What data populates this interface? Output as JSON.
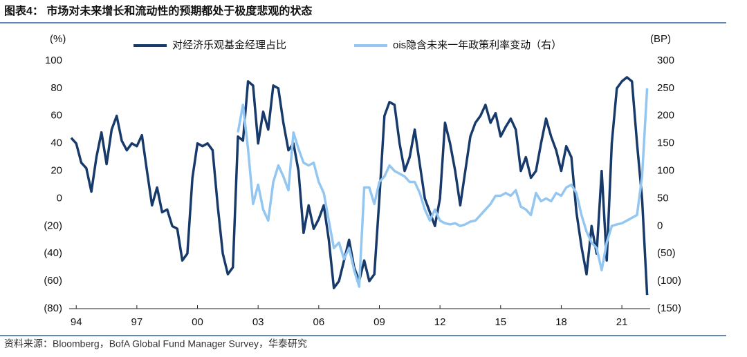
{
  "chart_data": {
    "type": "line",
    "title": "图表4：  市场对未来增长和流动性的预期都处于极度悲观的状态",
    "y_axis_label": "(%)",
    "y2_axis_label": "(BP)",
    "source": "资料来源：Bloomberg，BofA Global Fund Manager Survey，华泰研究",
    "legend": "top",
    "grid": false,
    "xlim": [
      1993.65,
      2022.4
    ],
    "xticks": [
      {
        "value": 1994,
        "label": "94"
      },
      {
        "value": 1997,
        "label": "97"
      },
      {
        "value": 2000,
        "label": "00"
      },
      {
        "value": 2003,
        "label": "03"
      },
      {
        "value": 2006,
        "label": "06"
      },
      {
        "value": 2009,
        "label": "09"
      },
      {
        "value": 2012,
        "label": "12"
      },
      {
        "value": 2015,
        "label": "15"
      },
      {
        "value": 2018,
        "label": "18"
      },
      {
        "value": 2021,
        "label": "21"
      }
    ],
    "ylim": [
      -80,
      100
    ],
    "yticks": [
      {
        "value": -80,
        "label": "(80)"
      },
      {
        "value": -60,
        "label": "(60)"
      },
      {
        "value": -40,
        "label": "(40)"
      },
      {
        "value": -20,
        "label": "(20)"
      },
      0,
      20,
      40,
      60,
      80,
      100
    ],
    "y2lim": [
      -150,
      300
    ],
    "y2ticks": [
      {
        "value": -150,
        "label": "(150)"
      },
      {
        "value": -100,
        "label": "(100)"
      },
      {
        "value": -50,
        "label": "(50)"
      },
      0,
      50,
      100,
      150,
      200,
      250,
      300
    ],
    "x": [
      1993.75,
      1994,
      1994.25,
      1994.5,
      1994.75,
      1995,
      1995.25,
      1995.5,
      1995.75,
      1996,
      1996.25,
      1996.5,
      1996.75,
      1997,
      1997.25,
      1997.5,
      1997.75,
      1998,
      1998.25,
      1998.5,
      1998.75,
      1999,
      1999.25,
      1999.5,
      1999.75,
      2000,
      2000.25,
      2000.5,
      2000.75,
      2001,
      2001.25,
      2001.5,
      2001.75,
      2002,
      2002.25,
      2002.5,
      2002.75,
      2003,
      2003.25,
      2003.5,
      2003.75,
      2004,
      2004.25,
      2004.5,
      2004.75,
      2005,
      2005.25,
      2005.5,
      2005.75,
      2006,
      2006.25,
      2006.5,
      2006.75,
      2007,
      2007.25,
      2007.5,
      2007.75,
      2008,
      2008.25,
      2008.5,
      2008.75,
      2009,
      2009.25,
      2009.5,
      2009.75,
      2010,
      2010.25,
      2010.5,
      2010.75,
      2011,
      2011.25,
      2011.5,
      2011.75,
      2012,
      2012.25,
      2012.5,
      2012.75,
      2013,
      2013.25,
      2013.5,
      2013.75,
      2014,
      2014.25,
      2014.5,
      2014.75,
      2015,
      2015.25,
      2015.5,
      2015.75,
      2016,
      2016.25,
      2016.5,
      2016.75,
      2017,
      2017.25,
      2017.5,
      2017.75,
      2018,
      2018.25,
      2018.5,
      2018.75,
      2019,
      2019.25,
      2019.5,
      2019.75,
      2020,
      2020.25,
      2020.5,
      2020.75,
      2021,
      2021.25,
      2021.5,
      2021.75,
      2022,
      2022.25
    ],
    "series": [
      {
        "name": "对经济乐观基金经理占比",
        "color": "#173a6a",
        "axis": "y",
        "values": [
          44,
          40,
          26,
          22,
          5,
          30,
          48,
          25,
          50,
          60,
          42,
          35,
          40,
          38,
          46,
          20,
          -5,
          8,
          -10,
          -8,
          -20,
          -22,
          -45,
          -40,
          15,
          40,
          38,
          40,
          35,
          -5,
          -40,
          -55,
          -50,
          45,
          42,
          85,
          82,
          40,
          63,
          50,
          82,
          80,
          55,
          35,
          40,
          20,
          -25,
          -5,
          -22,
          -15,
          -5,
          -30,
          -65,
          -60,
          -45,
          -30,
          -50,
          -60,
          -45,
          -60,
          -55,
          0,
          60,
          70,
          68,
          40,
          20,
          30,
          50,
          25,
          0,
          -10,
          -20,
          0,
          55,
          40,
          20,
          -5,
          20,
          45,
          55,
          60,
          68,
          55,
          62,
          45,
          52,
          58,
          50,
          20,
          30,
          15,
          20,
          40,
          58,
          45,
          35,
          20,
          38,
          30,
          -10,
          -35,
          -55,
          -20,
          -40,
          20,
          -45,
          40,
          80,
          85,
          88,
          85,
          40,
          0,
          -70
        ]
      },
      {
        "name": "ois隐含未来一年政策利率变动（右）",
        "color": "#93c6f0",
        "axis": "y2",
        "values": [
          null,
          null,
          null,
          null,
          null,
          null,
          null,
          null,
          null,
          null,
          null,
          null,
          null,
          null,
          null,
          null,
          null,
          null,
          null,
          null,
          null,
          null,
          null,
          null,
          null,
          null,
          null,
          null,
          null,
          null,
          null,
          null,
          null,
          170,
          220,
          140,
          40,
          75,
          30,
          10,
          80,
          110,
          90,
          65,
          170,
          140,
          115,
          110,
          115,
          80,
          60,
          10,
          -40,
          -30,
          -60,
          -40,
          -80,
          -110,
          70,
          70,
          40,
          80,
          90,
          110,
          100,
          95,
          90,
          80,
          80,
          60,
          30,
          10,
          30,
          10,
          5,
          3,
          5,
          0,
          3,
          8,
          10,
          20,
          30,
          40,
          55,
          55,
          60,
          55,
          65,
          35,
          30,
          20,
          60,
          45,
          50,
          45,
          60,
          55,
          70,
          75,
          60,
          20,
          -10,
          -30,
          -40,
          -80,
          -30,
          0,
          3,
          5,
          10,
          15,
          20,
          90,
          250
        ]
      }
    ]
  }
}
